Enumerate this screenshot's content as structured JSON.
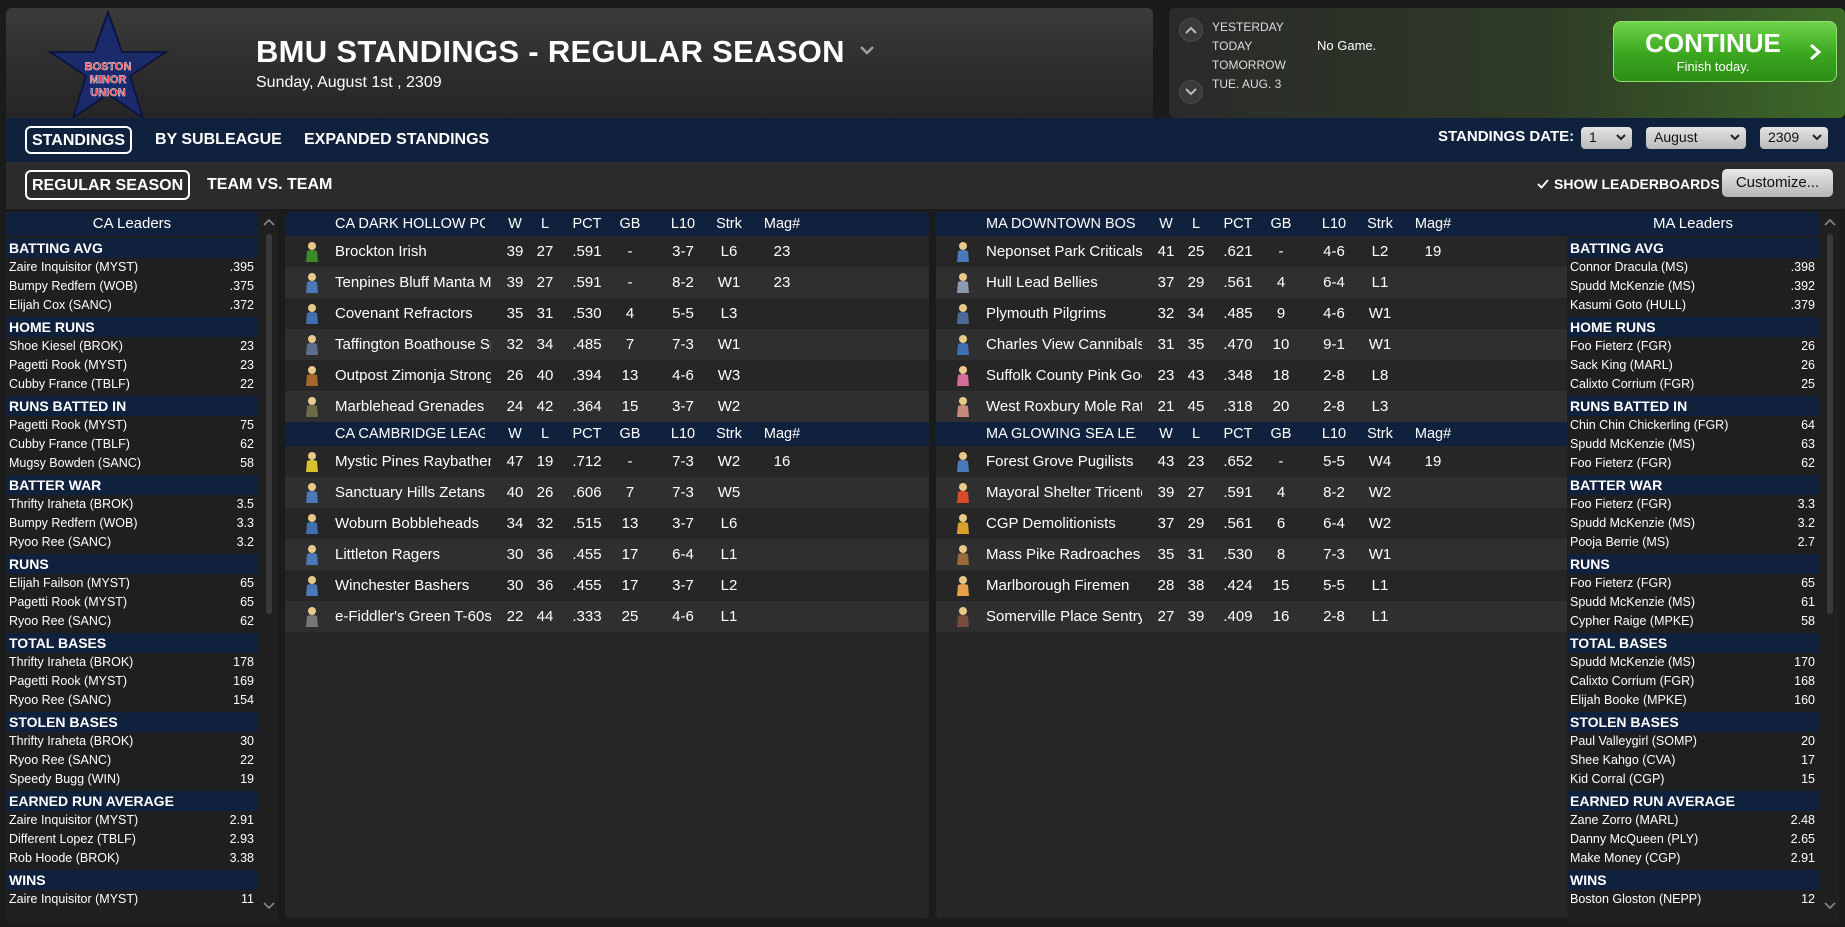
{
  "header": {
    "title": "BMU STANDINGS - REGULAR SEASON",
    "date": "Sunday, August 1st , 2309",
    "logo_text": [
      "BOSTON",
      "MINOR",
      "UNION"
    ]
  },
  "game_nav": {
    "days": [
      "YESTERDAY",
      "TODAY",
      "TOMORROW",
      "TUE. AUG. 3"
    ],
    "status": "No Game.",
    "continue_label": "CONTINUE",
    "continue_sub": "Finish today."
  },
  "tabs": [
    {
      "label": "STANDINGS",
      "active": true
    },
    {
      "label": "BY SUBLEAGUE",
      "active": false
    },
    {
      "label": "EXPANDED STANDINGS",
      "active": false
    }
  ],
  "standings_date": {
    "label": "STANDINGS DATE:",
    "day": "1",
    "month": "August",
    "year": "2309"
  },
  "subtabs": [
    {
      "label": "REGULAR SEASON",
      "active": true
    },
    {
      "label": "TEAM VS. TEAM",
      "active": false
    }
  ],
  "show_leaderboards": {
    "label": "SHOW LEADERBOARDS",
    "checked": true
  },
  "customize_label": "Customize...",
  "columns": [
    "W",
    "L",
    "PCT",
    "GB",
    "L10",
    "Strk",
    "Mag#"
  ],
  "leaders_left": {
    "title": "CA Leaders",
    "categories": [
      {
        "name": "BATTING AVG",
        "rows": [
          [
            "Zaire Inquisitor (MYST)",
            ".395"
          ],
          [
            "Bumpy Redfern (WOB)",
            ".375"
          ],
          [
            "Elijah Cox (SANC)",
            ".372"
          ]
        ]
      },
      {
        "name": "HOME RUNS",
        "rows": [
          [
            "Shoe Kiesel (BROK)",
            "23"
          ],
          [
            "Pagetti Rook (MYST)",
            "23"
          ],
          [
            "Cubby France (TBLF)",
            "22"
          ]
        ]
      },
      {
        "name": "RUNS BATTED IN",
        "rows": [
          [
            "Pagetti Rook (MYST)",
            "75"
          ],
          [
            "Cubby France (TBLF)",
            "62"
          ],
          [
            "Mugsy Bowden (SANC)",
            "58"
          ]
        ]
      },
      {
        "name": "BATTER WAR",
        "rows": [
          [
            "Thrifty Iraheta (BROK)",
            "3.5"
          ],
          [
            "Bumpy Redfern (WOB)",
            "3.3"
          ],
          [
            "Ryoo Ree (SANC)",
            "3.2"
          ]
        ]
      },
      {
        "name": "RUNS",
        "rows": [
          [
            "Elijah Failson (MYST)",
            "65"
          ],
          [
            "Pagetti Rook (MYST)",
            "65"
          ],
          [
            "Ryoo Ree (SANC)",
            "62"
          ]
        ]
      },
      {
        "name": "TOTAL BASES",
        "rows": [
          [
            "Thrifty Iraheta (BROK)",
            "178"
          ],
          [
            "Pagetti Rook (MYST)",
            "169"
          ],
          [
            "Ryoo Ree (SANC)",
            "154"
          ]
        ]
      },
      {
        "name": "STOLEN BASES",
        "rows": [
          [
            "Thrifty Iraheta (BROK)",
            "30"
          ],
          [
            "Ryoo Ree (SANC)",
            "22"
          ],
          [
            "Speedy Bugg (WIN)",
            "19"
          ]
        ]
      },
      {
        "name": "EARNED RUN AVERAGE",
        "rows": [
          [
            "Zaire Inquisitor (MYST)",
            "2.91"
          ],
          [
            "Different Lopez (TBLF)",
            "2.93"
          ],
          [
            "Rob Hoode (BROK)",
            "3.38"
          ]
        ]
      },
      {
        "name": "WINS",
        "rows": [
          [
            "Zaire Inquisitor (MYST)",
            "11"
          ]
        ]
      }
    ]
  },
  "leaders_right": {
    "title": "MA Leaders",
    "categories": [
      {
        "name": "BATTING AVG",
        "rows": [
          [
            "Connor Dracula (MS)",
            ".398"
          ],
          [
            "Spudd McKenzie (MS)",
            ".392"
          ],
          [
            "Kasumi Goto (HULL)",
            ".379"
          ]
        ]
      },
      {
        "name": "HOME RUNS",
        "rows": [
          [
            "Foo Fieterz (FGR)",
            "26"
          ],
          [
            "Sack King (MARL)",
            "26"
          ],
          [
            "Calixto Corrium (FGR)",
            "25"
          ]
        ]
      },
      {
        "name": "RUNS BATTED IN",
        "rows": [
          [
            "Chin Chin Chickerling (FGR)",
            "64"
          ],
          [
            "Spudd McKenzie (MS)",
            "63"
          ],
          [
            "Foo Fieterz (FGR)",
            "62"
          ]
        ]
      },
      {
        "name": "BATTER WAR",
        "rows": [
          [
            "Foo Fieterz (FGR)",
            "3.3"
          ],
          [
            "Spudd McKenzie (MS)",
            "3.2"
          ],
          [
            "Pooja Berrie (MS)",
            "2.7"
          ]
        ]
      },
      {
        "name": "RUNS",
        "rows": [
          [
            "Foo Fieterz (FGR)",
            "65"
          ],
          [
            "Spudd McKenzie (MS)",
            "61"
          ],
          [
            "Cypher Raige (MPKE)",
            "58"
          ]
        ]
      },
      {
        "name": "TOTAL BASES",
        "rows": [
          [
            "Spudd McKenzie (MS)",
            "170"
          ],
          [
            "Calixto Corrium (FGR)",
            "168"
          ],
          [
            "Elijah Booke (MPKE)",
            "160"
          ]
        ]
      },
      {
        "name": "STOLEN BASES",
        "rows": [
          [
            "Paul Valleygirl (SOMP)",
            "20"
          ],
          [
            "Shee Kahgo (CVA)",
            "17"
          ],
          [
            "Kid Corral (CGP)",
            "15"
          ]
        ]
      },
      {
        "name": "EARNED RUN AVERAGE",
        "rows": [
          [
            "Zane Zorro (MARL)",
            "2.48"
          ],
          [
            "Danny McQueen (PLY)",
            "2.65"
          ],
          [
            "Make Money (CGP)",
            "2.91"
          ]
        ]
      },
      {
        "name": "WINS",
        "rows": [
          [
            "Boston Gloston (NEPP)",
            "12"
          ]
        ]
      }
    ]
  },
  "divisions_left": [
    {
      "name": "CA DARK HOLLOW POND LEAGUE",
      "teams": [
        {
          "name": "Brockton Irish",
          "w": "39",
          "l": "27",
          "pct": ".591",
          "gb": "-",
          "l10": "3-7",
          "strk": "L6",
          "mag": "23",
          "color": "#3b8a2a"
        },
        {
          "name": "Tenpines Bluff Manta Men",
          "w": "39",
          "l": "27",
          "pct": ".591",
          "gb": "-",
          "l10": "8-2",
          "strk": "W1",
          "mag": "23",
          "color": "#4a78b8"
        },
        {
          "name": "Covenant Refractors",
          "w": "35",
          "l": "31",
          "pct": ".530",
          "gb": "4",
          "l10": "5-5",
          "strk": "L3",
          "mag": "",
          "color": "#3f6fae"
        },
        {
          "name": "Taffington Boathouse Spy Hunters",
          "w": "32",
          "l": "34",
          "pct": ".485",
          "gb": "7",
          "l10": "7-3",
          "strk": "W1",
          "mag": "",
          "color": "#5a6f8a"
        },
        {
          "name": "Outpost Zimonja Strongbacks",
          "w": "26",
          "l": "40",
          "pct": ".394",
          "gb": "13",
          "l10": "4-6",
          "strk": "W3",
          "mag": "",
          "color": "#a8662a"
        },
        {
          "name": "Marblehead Grenades",
          "w": "24",
          "l": "42",
          "pct": ".364",
          "gb": "15",
          "l10": "3-7",
          "strk": "W2",
          "mag": "",
          "color": "#6b6b4a"
        }
      ]
    },
    {
      "name": "CA CAMBRIDGE LEAGUE",
      "teams": [
        {
          "name": "Mystic Pines Raybathers",
          "w": "47",
          "l": "19",
          "pct": ".712",
          "gb": "-",
          "l10": "7-3",
          "strk": "W2",
          "mag": "16",
          "color": "#d8c22a"
        },
        {
          "name": "Sanctuary Hills Zetans",
          "w": "40",
          "l": "26",
          "pct": ".606",
          "gb": "7",
          "l10": "7-3",
          "strk": "W5",
          "mag": "",
          "color": "#4a78b8"
        },
        {
          "name": "Woburn Bobbleheads",
          "w": "34",
          "l": "32",
          "pct": ".515",
          "gb": "13",
          "l10": "3-7",
          "strk": "L6",
          "mag": "",
          "color": "#3f6fae"
        },
        {
          "name": "Littleton Ragers",
          "w": "30",
          "l": "36",
          "pct": ".455",
          "gb": "17",
          "l10": "6-4",
          "strk": "L1",
          "mag": "",
          "color": "#4a78b8"
        },
        {
          "name": "Winchester Bashers",
          "w": "30",
          "l": "36",
          "pct": ".455",
          "gb": "17",
          "l10": "3-7",
          "strk": "L2",
          "mag": "",
          "color": "#4a78b8"
        },
        {
          "name": "e-Fiddler's Green T-60s",
          "w": "22",
          "l": "44",
          "pct": ".333",
          "gb": "25",
          "l10": "4-6",
          "strk": "L1",
          "mag": "",
          "color": "#777777"
        }
      ]
    }
  ],
  "divisions_right": [
    {
      "name": "MA DOWNTOWN BOSTON LEAGUE",
      "teams": [
        {
          "name": "Neponset Park Criticals",
          "w": "41",
          "l": "25",
          "pct": ".621",
          "gb": "-",
          "l10": "4-6",
          "strk": "L2",
          "mag": "19",
          "color": "#4a78b8"
        },
        {
          "name": "Hull Lead Bellies",
          "w": "37",
          "l": "29",
          "pct": ".561",
          "gb": "4",
          "l10": "6-4",
          "strk": "L1",
          "mag": "",
          "color": "#8a9ab0"
        },
        {
          "name": "Plymouth Pilgrims",
          "w": "32",
          "l": "34",
          "pct": ".485",
          "gb": "9",
          "l10": "4-6",
          "strk": "W1",
          "mag": "",
          "color": "#4a6a9a"
        },
        {
          "name": "Charles View Cannibals",
          "w": "31",
          "l": "35",
          "pct": ".470",
          "gb": "10",
          "l10": "9-1",
          "strk": "W1",
          "mag": "",
          "color": "#3f6fae"
        },
        {
          "name": "Suffolk County Pink Goo",
          "w": "23",
          "l": "43",
          "pct": ".348",
          "gb": "18",
          "l10": "2-8",
          "strk": "L8",
          "mag": "",
          "color": "#d86a9a"
        },
        {
          "name": "West Roxbury Mole Rats",
          "w": "21",
          "l": "45",
          "pct": ".318",
          "gb": "20",
          "l10": "2-8",
          "strk": "L3",
          "mag": "",
          "color": "#c88a7a"
        }
      ]
    },
    {
      "name": "MA GLOWING SEA LEAGUE",
      "teams": [
        {
          "name": "Forest Grove Pugilists",
          "w": "43",
          "l": "23",
          "pct": ".652",
          "gb": "-",
          "l10": "5-5",
          "strk": "W4",
          "mag": "19",
          "color": "#4a78b8"
        },
        {
          "name": "Mayoral Shelter Tricentennia",
          "w": "39",
          "l": "27",
          "pct": ".591",
          "gb": "4",
          "l10": "8-2",
          "strk": "W2",
          "mag": "",
          "color": "#d84a2a"
        },
        {
          "name": "CGP Demolitionists",
          "w": "37",
          "l": "29",
          "pct": ".561",
          "gb": "6",
          "l10": "6-4",
          "strk": "W2",
          "mag": "",
          "color": "#d8a02a"
        },
        {
          "name": "Mass Pike Radroaches",
          "w": "35",
          "l": "31",
          "pct": ".530",
          "gb": "8",
          "l10": "7-3",
          "strk": "W1",
          "mag": "",
          "color": "#9a6a3a"
        },
        {
          "name": "Marlborough Firemen",
          "w": "28",
          "l": "38",
          "pct": ".424",
          "gb": "15",
          "l10": "5-5",
          "strk": "L1",
          "mag": "",
          "color": "#e8a04a"
        },
        {
          "name": "Somerville Place Sentry Bots",
          "w": "27",
          "l": "39",
          "pct": ".409",
          "gb": "16",
          "l10": "2-8",
          "strk": "L1",
          "mag": "",
          "color": "#7a4a3a"
        }
      ]
    }
  ]
}
